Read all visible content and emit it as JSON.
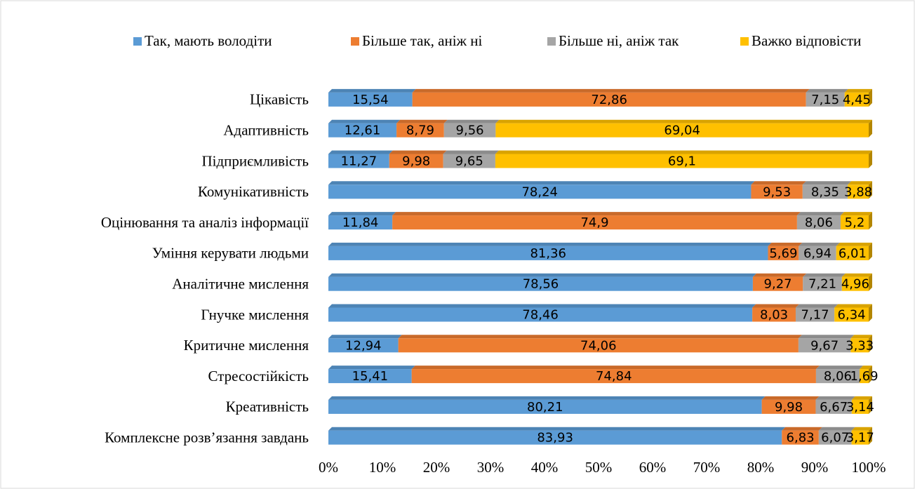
{
  "chart_data": {
    "type": "stacked_barh",
    "categories": [
      "Цікавість",
      "Адаптивність",
      "Підприємливість",
      "Комунікативність",
      "Оцінювання та аналіз інформації",
      "Уміння керувати людьми",
      "Аналітичне мислення",
      "Гнучке мислення",
      "Критичне мислення",
      "Стресостійкість",
      "Креативність",
      "Комплексне розв’язання завдань"
    ],
    "series": [
      {
        "name": "Так, мають володіти",
        "color": "#5b9bd5",
        "values": [
          15.54,
          12.61,
          11.27,
          78.24,
          11.84,
          81.36,
          78.56,
          78.46,
          12.94,
          15.41,
          80.21,
          83.93
        ],
        "value_labels": [
          "15,54",
          "12,61",
          "11,27",
          "78,24",
          "11,84",
          "81,36",
          "78,56",
          "78,46",
          "12,94",
          "15,41",
          "80,21",
          "83,93"
        ]
      },
      {
        "name": "Більше так, аніж ні",
        "color": "#ed7d31",
        "values": [
          72.86,
          8.79,
          9.98,
          9.53,
          74.9,
          5.69,
          9.27,
          8.03,
          74.06,
          74.84,
          9.98,
          6.83
        ],
        "value_labels": [
          "72,86",
          "8,79",
          "9,98",
          "9,53",
          "74,9",
          "5,69",
          "9,27",
          "8,03",
          "74,06",
          "74,84",
          "9,98",
          "6,83"
        ]
      },
      {
        "name": "Більше ні, аніж так",
        "color": "#a5a5a5",
        "values": [
          7.15,
          9.56,
          9.65,
          8.35,
          8.06,
          6.94,
          7.21,
          7.17,
          9.67,
          8.06,
          6.67,
          6.07
        ],
        "value_labels": [
          "7,15",
          "9,56",
          "9,65",
          "8,35",
          "8,06",
          "6,94",
          "7,21",
          "7,17",
          "9,67",
          "8,06",
          "6,67",
          "6,07"
        ]
      },
      {
        "name": "Важко відповісти",
        "color": "#ffc000",
        "values": [
          4.45,
          69.04,
          69.1,
          3.88,
          5.2,
          6.01,
          4.96,
          6.34,
          3.33,
          1.69,
          3.14,
          3.17
        ],
        "value_labels": [
          "4,45",
          "69,04",
          "69,1",
          "3,88",
          "5,2",
          "6,01",
          "4,96",
          "6,34",
          "3,33",
          "1,69",
          "3,14",
          "3,17"
        ]
      }
    ],
    "xlim": [
      0,
      100
    ],
    "xticks": [
      {
        "value": 0,
        "label": "0%"
      },
      {
        "value": 10,
        "label": "10%"
      },
      {
        "value": 20,
        "label": "20%"
      },
      {
        "value": 30,
        "label": "30%"
      },
      {
        "value": 40,
        "label": "40%"
      },
      {
        "value": 50,
        "label": "50%"
      },
      {
        "value": 60,
        "label": "60%"
      },
      {
        "value": 70,
        "label": "70%"
      },
      {
        "value": 80,
        "label": "80%"
      },
      {
        "value": 90,
        "label": "90%"
      },
      {
        "value": 100,
        "label": "100%"
      }
    ],
    "legend": "top"
  }
}
